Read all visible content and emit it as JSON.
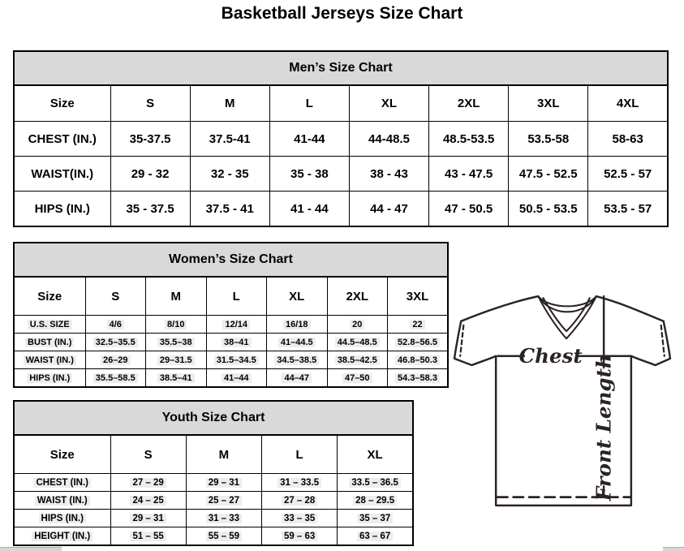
{
  "page_title": "Basketball Jerseys Size Chart",
  "tables": {
    "men": {
      "title": "Men’s Size Chart",
      "columns": [
        "Size",
        "S",
        "M",
        "L",
        "XL",
        "2XL",
        "3XL",
        "4XL"
      ],
      "rows": [
        {
          "label": "CHEST (IN.)",
          "values": [
            "35-37.5",
            "37.5-41",
            "41-44",
            "44-48.5",
            "48.5-53.5",
            "53.5-58",
            "58-63"
          ]
        },
        {
          "label": "WAIST(IN.)",
          "values": [
            "29 - 32",
            "32 - 35",
            "35 - 38",
            "38 - 43",
            "43 - 47.5",
            "47.5 - 52.5",
            "52.5 - 57"
          ]
        },
        {
          "label": "HIPS (IN.)",
          "values": [
            "35 - 37.5",
            "37.5 - 41",
            "41 - 44",
            "44 - 47",
            "47 - 50.5",
            "50.5 - 53.5",
            "53.5 - 57"
          ]
        }
      ]
    },
    "women": {
      "title": "Women’s Size Chart",
      "columns": [
        "Size",
        "S",
        "M",
        "L",
        "XL",
        "2XL",
        "3XL"
      ],
      "rows": [
        {
          "label": "U.S. SIZE",
          "values": [
            "4/6",
            "8/10",
            "12/14",
            "16/18",
            "20",
            "22"
          ]
        },
        {
          "label": "BUST (IN.)",
          "values": [
            "32.5–35.5",
            "35.5–38",
            "38–41",
            "41–44.5",
            "44.5–48.5",
            "52.8–56.5"
          ]
        },
        {
          "label": "WAIST (IN.)",
          "values": [
            "26–29",
            "29–31.5",
            "31.5–34.5",
            "34.5–38.5",
            "38.5–42.5",
            "46.8–50.3"
          ]
        },
        {
          "label": "HIPS (IN.)",
          "values": [
            "35.5–58.5",
            "38.5–41",
            "41–44",
            "44–47",
            "47–50",
            "54.3–58.3"
          ]
        }
      ]
    },
    "youth": {
      "title": "Youth Size Chart",
      "columns": [
        "Size",
        "S",
        "M",
        "L",
        "XL"
      ],
      "rows": [
        {
          "label": "CHEST (IN.)",
          "values": [
            "27 – 29",
            "29 – 31",
            "31 – 33.5",
            "33.5 – 36.5"
          ]
        },
        {
          "label": "WAIST (IN.)",
          "values": [
            "24 – 25",
            "25 – 27",
            "27 – 28",
            "28 – 29.5"
          ]
        },
        {
          "label": "HIPS (IN.)",
          "values": [
            "29 – 31",
            "31 – 33",
            "33 – 35",
            "35 – 37"
          ]
        },
        {
          "label": "HEIGHT (IN.)",
          "values": [
            "51 – 55",
            "55 – 59",
            "59 – 63",
            "63 – 67"
          ]
        }
      ]
    }
  },
  "diagram": {
    "chest_label": "Chest",
    "front_length_label": "Front Length"
  },
  "colors": {
    "table_band_gray": "#d9d9d9",
    "line_dark": "#2b2326",
    "highlight_gray": "#ededed"
  }
}
